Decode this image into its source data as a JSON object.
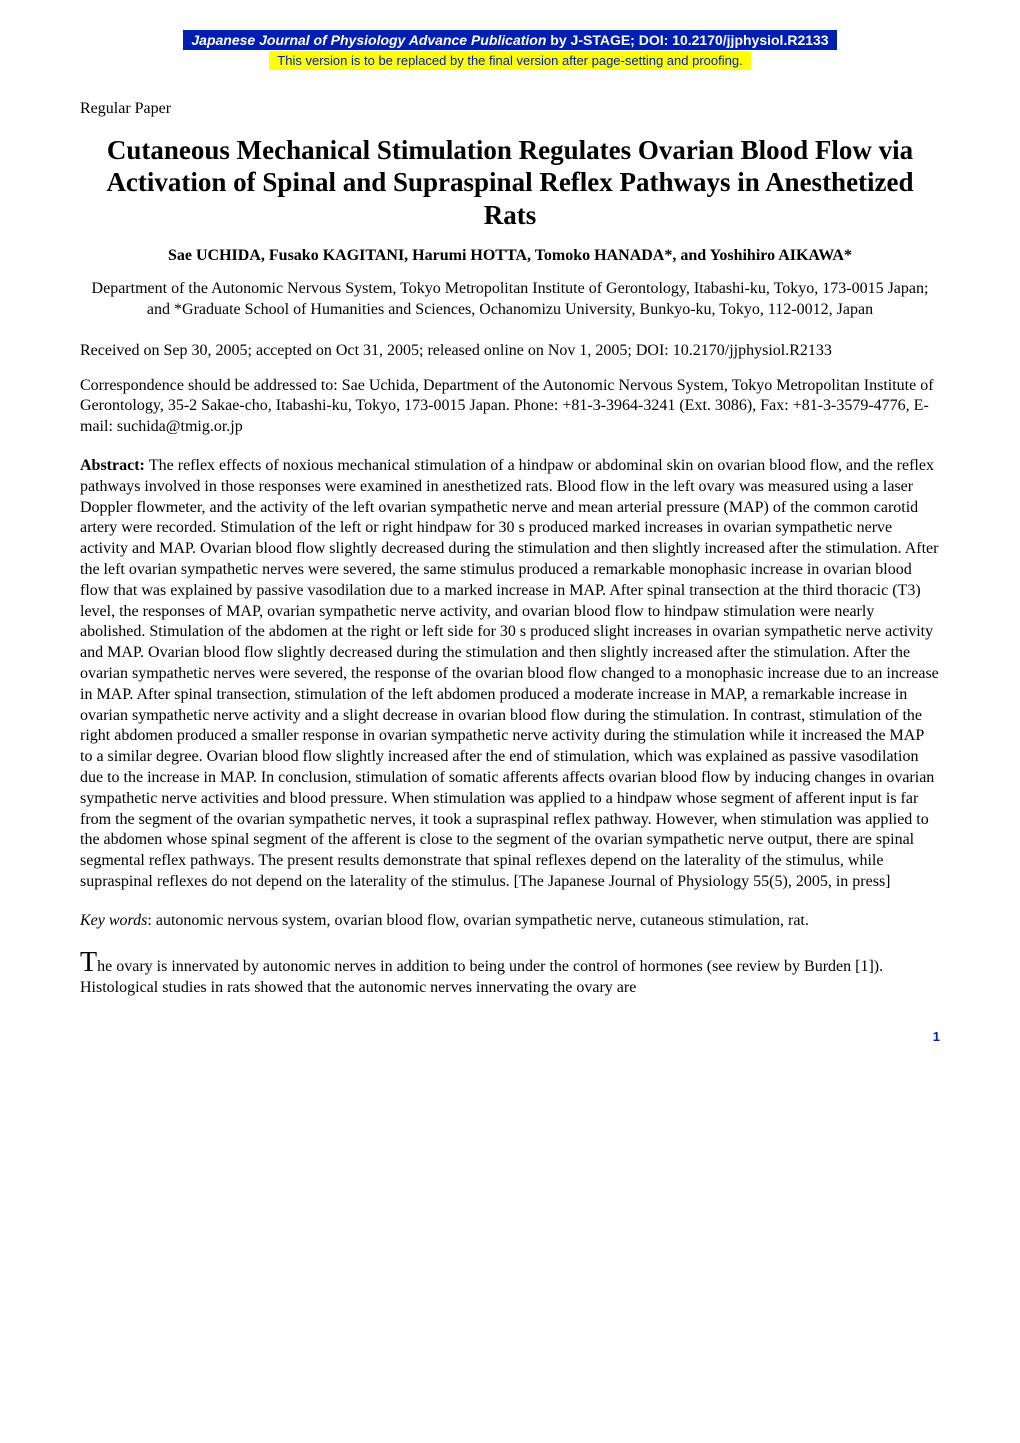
{
  "banner": {
    "top_italic": "Japanese Journal of Physiology Advance Publication",
    "top_rest": " by J-STAGE; DOI: 10.2170/jjphysiol.R2133",
    "sub": "This version is to be replaced by the final version after page-setting and proofing."
  },
  "paper_type": "Regular Paper",
  "title": "Cutaneous Mechanical Stimulation Regulates Ovarian Blood Flow via Activation of Spinal and Supraspinal Reflex Pathways in Anesthetized Rats",
  "authors_html": "Sae UCHIDA, Fusako KAGITANI, Harumi HOTTA, Tomoko HANADA*, and Yoshihiro AIKAWA*",
  "affiliation": "Department of the Autonomic Nervous System, Tokyo Metropolitan Institute of Gerontology, Itabashi-ku, Tokyo, 173-0015 Japan; and *Graduate School of Humanities and Sciences, Ochanomizu University, Bunkyo-ku, Tokyo, 112-0012, Japan",
  "received": "Received on Sep 30, 2005; accepted on Oct 31, 2005; released online on Nov 1, 2005; DOI: 10.2170/jjphysiol.R2133",
  "correspondence": "Correspondence should be addressed to: Sae Uchida, Department of the Autonomic Nervous System, Tokyo Metropolitan Institute of Gerontology, 35-2 Sakae-cho, Itabashi-ku, Tokyo, 173-0015 Japan. Phone: +81-3-3964-3241 (Ext. 3086), Fax: +81-3-3579-4776, E-mail: suchida@tmig.or.jp",
  "abstract_label": "Abstract: ",
  "abstract_text": "The reflex effects of noxious mechanical stimulation of a hindpaw or abdominal skin on ovarian blood flow, and the reflex pathways involved in those responses were examined in anesthetized rats. Blood flow in the left ovary was measured using a laser Doppler flowmeter, and the activity of the left ovarian sympathetic nerve and mean arterial pressure (MAP) of the common carotid artery were recorded. Stimulation of the left or right hindpaw for 30 s produced marked increases in ovarian sympathetic nerve activity and MAP. Ovarian blood flow slightly decreased during the stimulation and then slightly increased after the stimulation. After the left ovarian sympathetic nerves were severed, the same stimulus produced a remarkable monophasic increase in ovarian blood flow that was explained by passive vasodilation due to a marked increase in MAP. After spinal transection at the third thoracic (T3) level, the responses of MAP, ovarian sympathetic nerve activity, and ovarian blood flow to hindpaw stimulation were nearly abolished. Stimulation of the abdomen at the right or left side for 30 s produced slight increases in ovarian sympathetic nerve activity and MAP. Ovarian blood flow slightly decreased during the stimulation and then slightly increased after the stimulation. After the ovarian sympathetic nerves were severed, the response of the ovarian blood flow changed to a monophasic increase due to an increase in MAP. After spinal transection, stimulation of the left abdomen produced a moderate increase in MAP, a remarkable increase in ovarian sympathetic nerve activity and a slight decrease in ovarian blood flow during the stimulation. In contrast, stimulation of the right abdomen produced a smaller response in ovarian sympathetic nerve activity during the stimulation while it increased the MAP to a similar degree. Ovarian blood flow slightly increased after the end of stimulation, which was explained as passive vasodilation due to the increase in MAP. In conclusion, stimulation of somatic afferents affects ovarian blood flow by inducing changes in ovarian sympathetic nerve activities and blood pressure. When stimulation was applied to a hindpaw whose segment of afferent input is far from the segment of the ovarian sympathetic nerves, it took a supraspinal reflex pathway. However, when stimulation was applied to the abdomen whose spinal segment of the afferent is close to the segment of the ovarian sympathetic nerve output, there are spinal segmental reflex pathways. The present results demonstrate that spinal reflexes depend on the laterality of the stimulus, while supraspinal reflexes do not depend on the laterality of the stimulus. [The Japanese Journal of Physiology 55(5), 2005, in press]",
  "keywords_label": "Key words",
  "keywords_text": ": autonomic nervous system, ovarian blood flow, ovarian sympathetic nerve, cutaneous stimulation, rat.",
  "body_dropcap": "T",
  "body_text": "he ovary is innervated by autonomic nerves in addition to being under the control of hormones (see review by Burden [1]). Histological studies in rats showed that the autonomic nerves innervating the ovary are",
  "page_number": "1",
  "colors": {
    "banner_bg": "#001eb0",
    "banner_fg": "#ffffff",
    "highlight_bg": "#ffff00",
    "highlight_fg": "#001eb0",
    "page_number": "#001eb0",
    "body_text": "#000000",
    "page_bg": "#ffffff"
  }
}
